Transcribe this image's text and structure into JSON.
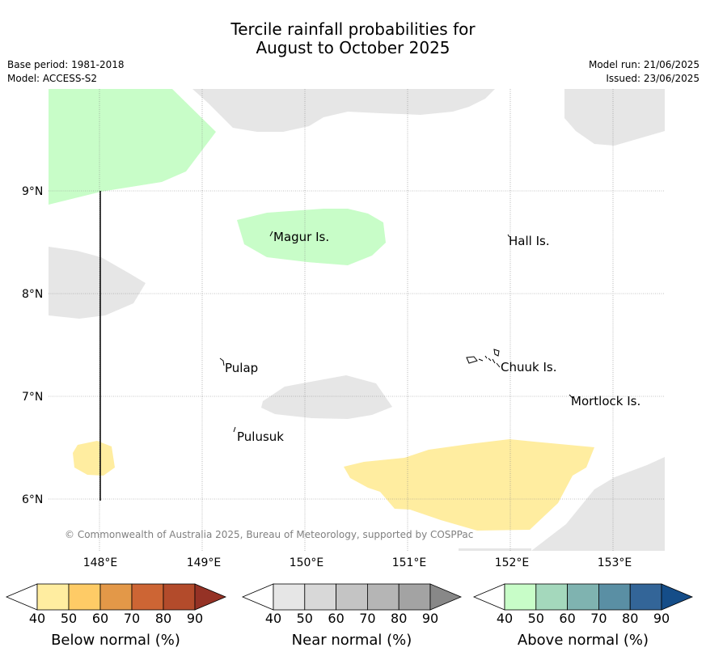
{
  "title_line1": "Tercile rainfall probabilities for",
  "title_line2": "August to October 2025",
  "base_period": "Base period: 1981-2018",
  "model": "Model: ACCESS-S2",
  "model_run": "Model run: 21/06/2025",
  "issued": "Issued: 23/06/2025",
  "copyright": "© Commonwealth of Australia 2025, Bureau of Meteorology, supported by COSPPac",
  "lat_labels": [
    "9°N",
    "8°N",
    "7°N",
    "6°N"
  ],
  "lon_labels": [
    "148°E",
    "149°E",
    "150°E",
    "151°E",
    "152°E",
    "153°E"
  ],
  "places": [
    "Magur Is.",
    "Hall Is.",
    "Pulap",
    "Chuuk Is.",
    "Mortlock Is.",
    "Pulusuk"
  ],
  "colorbars": [
    {
      "label": "Below normal (%)",
      "ticks": [
        "40",
        "50",
        "60",
        "70",
        "80",
        "90"
      ],
      "colors": [
        "#ffeda0",
        "#fecb66",
        "#e39848",
        "#cd6534",
        "#b34b2b",
        "#953225"
      ]
    },
    {
      "label": "Near normal (%)",
      "ticks": [
        "40",
        "50",
        "60",
        "70",
        "80",
        "90"
      ],
      "colors": [
        "#e6e6e6",
        "#d8d8d8",
        "#c4c4c4",
        "#b5b5b5",
        "#a3a3a3",
        "#888888"
      ]
    },
    {
      "label": "Above normal (%)",
      "ticks": [
        "40",
        "50",
        "60",
        "70",
        "80",
        "90"
      ],
      "colors": [
        "#c8fdc8",
        "#a4d8bc",
        "#7fb3b0",
        "#5a8fa4",
        "#336598",
        "#154d88"
      ]
    }
  ]
}
